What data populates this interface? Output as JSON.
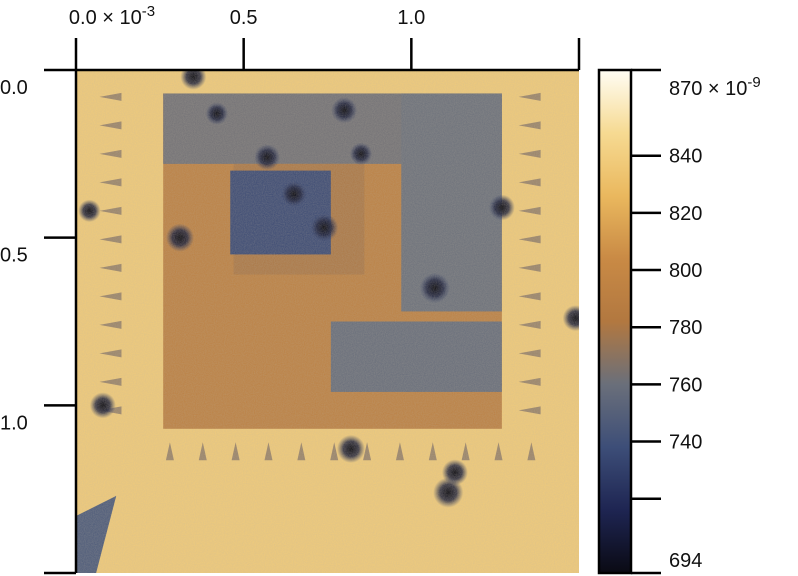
{
  "chart_data": {
    "type": "heatmap",
    "title": "",
    "xlabel": "",
    "ylabel": "",
    "x_axis": {
      "position": "top",
      "range": [
        0.0,
        1.5
      ],
      "scale_note": "× 10-3",
      "ticks": [
        {
          "value": 0.0,
          "label": "0.0 × 10",
          "exponent": "-3"
        },
        {
          "value": 0.5,
          "label": "0.5"
        },
        {
          "value": 1.0,
          "label": "1.0"
        },
        {
          "value": 1.5,
          "label": ""
        }
      ]
    },
    "y_axis": {
      "position": "left",
      "inverted": true,
      "range": [
        0.0,
        1.5
      ],
      "ticks": [
        {
          "value": 0.0,
          "label": "0.0"
        },
        {
          "value": 0.5,
          "label": "0.5"
        },
        {
          "value": 1.0,
          "label": "1.0"
        },
        {
          "value": 1.5,
          "label": ""
        }
      ]
    },
    "colorbar": {
      "range": [
        694,
        870
      ],
      "ticks": [
        {
          "value": 870,
          "label": "870 × 10",
          "exponent": "-9"
        },
        {
          "value": 840,
          "label": "840"
        },
        {
          "value": 820,
          "label": "820"
        },
        {
          "value": 800,
          "label": "800"
        },
        {
          "value": 780,
          "label": "780"
        },
        {
          "value": 760,
          "label": "760"
        },
        {
          "value": 740,
          "label": "740"
        },
        {
          "value": 720,
          "label": ""
        },
        {
          "value": 694,
          "label": "694"
        }
      ],
      "colors": [
        "#0a0a14",
        "#1e2552",
        "#3d4e78",
        "#6a6f7a",
        "#b27840",
        "#c98a45",
        "#eab85e",
        "#f6da92",
        "#fffdf4"
      ]
    },
    "regions": [
      {
        "name": "background",
        "x": [
          0.0,
          1.5
        ],
        "y": [
          0.0,
          1.5
        ],
        "value": 838
      },
      {
        "name": "outer-square",
        "x": [
          0.26,
          1.27
        ],
        "y": [
          0.07,
          1.07
        ],
        "value": 792
      },
      {
        "name": "upper-band",
        "x": [
          0.26,
          1.27
        ],
        "y": [
          0.07,
          0.28
        ],
        "value": 762
      },
      {
        "name": "right-band",
        "x": [
          0.97,
          1.27
        ],
        "y": [
          0.07,
          0.72
        ],
        "value": 760
      },
      {
        "name": "lower-right-block",
        "x": [
          0.76,
          1.27
        ],
        "y": [
          0.75,
          0.96
        ],
        "value": 758
      },
      {
        "name": "center-left-block",
        "x": [
          0.47,
          0.86
        ],
        "y": [
          0.28,
          0.61
        ],
        "value": 780
      },
      {
        "name": "inner-dark-square",
        "x": [
          0.46,
          0.76
        ],
        "y": [
          0.3,
          0.55
        ],
        "value": 735
      }
    ],
    "spots": [
      {
        "x": 0.35,
        "y": 0.02,
        "value": 700
      },
      {
        "x": 0.42,
        "y": 0.13,
        "value": 705
      },
      {
        "x": 0.8,
        "y": 0.12,
        "value": 700
      },
      {
        "x": 0.57,
        "y": 0.26,
        "value": 700
      },
      {
        "x": 0.85,
        "y": 0.25,
        "value": 705
      },
      {
        "x": 0.65,
        "y": 0.37,
        "value": 700
      },
      {
        "x": 0.74,
        "y": 0.47,
        "value": 697
      },
      {
        "x": 0.31,
        "y": 0.5,
        "value": 697
      },
      {
        "x": 1.07,
        "y": 0.65,
        "value": 694
      },
      {
        "x": 1.27,
        "y": 0.41,
        "value": 700
      },
      {
        "x": 0.04,
        "y": 0.42,
        "value": 705
      },
      {
        "x": 0.08,
        "y": 1.0,
        "value": 700
      },
      {
        "x": 0.82,
        "y": 1.13,
        "value": 697
      },
      {
        "x": 1.13,
        "y": 1.2,
        "value": 700
      },
      {
        "x": 1.11,
        "y": 1.26,
        "value": 694
      },
      {
        "x": 1.49,
        "y": 0.74,
        "value": 700
      }
    ]
  }
}
